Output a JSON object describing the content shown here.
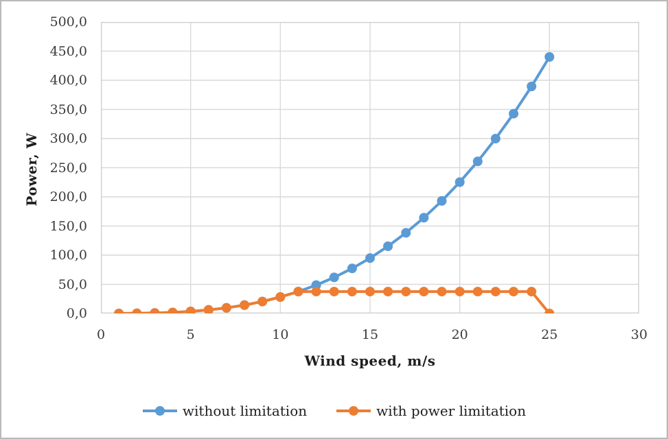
{
  "figure": {
    "background": "#ffffff",
    "border_color": "#b9b9b9",
    "text_color": "#3a3a3a",
    "gridline_color": "#d9d9d9",
    "plot_border_color": "#cfcfcf"
  },
  "chart_data": {
    "type": "line",
    "title": "",
    "xlabel": "Wind speed, m/s",
    "ylabel": "Power, W",
    "xlim": [
      0,
      30
    ],
    "ylim": [
      0,
      500
    ],
    "grid": true,
    "legend_position": "bottom",
    "x_ticks": [
      0,
      5,
      10,
      15,
      20,
      25,
      30
    ],
    "x_tick_labels": [
      "0",
      "5",
      "10",
      "15",
      "20",
      "25",
      "30"
    ],
    "y_ticks": [
      0,
      50,
      100,
      150,
      200,
      250,
      300,
      350,
      400,
      450,
      500
    ],
    "y_tick_labels": [
      "0,0",
      "50,0",
      "100,0",
      "150,0",
      "200,0",
      "250,0",
      "300,0",
      "350,0",
      "400,0",
      "450,0",
      "500,0"
    ],
    "x": [
      1,
      2,
      3,
      4,
      5,
      6,
      7,
      8,
      9,
      10,
      11,
      12,
      13,
      14,
      15,
      16,
      17,
      18,
      19,
      20,
      21,
      22,
      23,
      24,
      25
    ],
    "series": [
      {
        "name": "without limitation",
        "color": "#5B9BD5",
        "marker": "circle",
        "values": [
          0.0,
          0.2,
          0.8,
          1.8,
          3.5,
          6.1,
          9.7,
          14.4,
          20.5,
          28.2,
          37.5,
          48.7,
          61.9,
          77.3,
          95.0,
          115.3,
          138.4,
          164.2,
          193.1,
          225.3,
          260.8,
          299.9,
          342.7,
          389.4,
          440.0
        ]
      },
      {
        "name": "with power limitation",
        "color": "#ED7D31",
        "marker": "circle",
        "values": [
          0.0,
          0.2,
          0.8,
          1.8,
          3.5,
          6.1,
          9.7,
          14.4,
          20.5,
          28.2,
          37.5,
          37.5,
          37.5,
          37.5,
          37.5,
          37.5,
          37.5,
          37.5,
          37.5,
          37.5,
          37.5,
          37.5,
          37.5,
          37.5,
          0.0
        ]
      }
    ]
  }
}
